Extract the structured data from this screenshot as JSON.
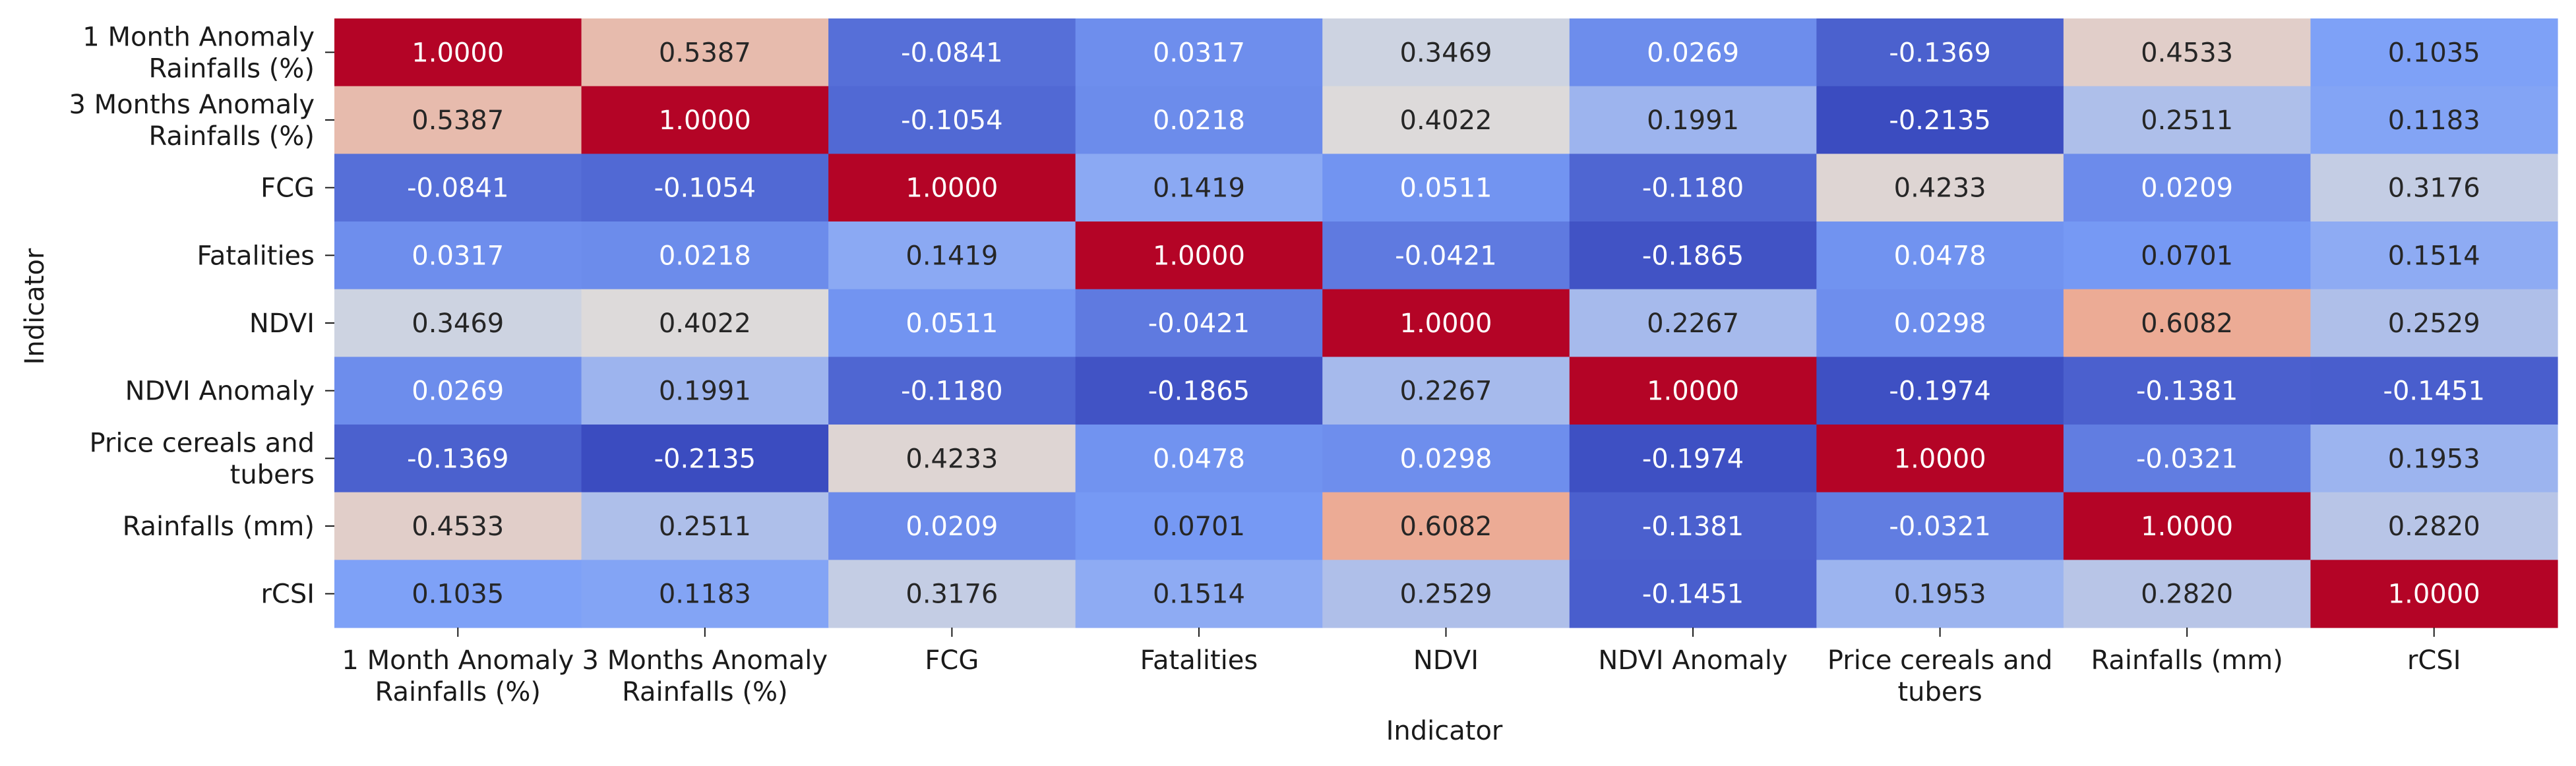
{
  "chart_data": {
    "type": "heatmap",
    "title": "",
    "xlabel": "Indicator",
    "ylabel": "Indicator",
    "colormap": "coolwarm",
    "value_range": [
      -0.2135,
      1.0
    ],
    "colorbar": false,
    "grid": false,
    "legend": "none",
    "categories": [
      [
        "1 Month Anomaly",
        "Rainfalls (%)"
      ],
      [
        "3 Months Anomaly",
        "Rainfalls (%)"
      ],
      [
        "FCG"
      ],
      [
        "Fatalities"
      ],
      [
        "NDVI"
      ],
      [
        "NDVI Anomaly"
      ],
      [
        "Price cereals and",
        "tubers"
      ],
      [
        "Rainfalls (mm)"
      ],
      [
        "rCSI"
      ]
    ],
    "matrix": [
      [
        "1.0000",
        "0.5387",
        "-0.0841",
        "0.0317",
        "0.3469",
        "0.0269",
        "-0.1369",
        "0.4533",
        "0.1035"
      ],
      [
        "0.5387",
        "1.0000",
        "-0.1054",
        "0.0218",
        "0.4022",
        "0.1991",
        "-0.2135",
        "0.2511",
        "0.1183"
      ],
      [
        "-0.0841",
        "-0.1054",
        "1.0000",
        "0.1419",
        "0.0511",
        "-0.1180",
        "0.4233",
        "0.0209",
        "0.3176"
      ],
      [
        "0.0317",
        "0.0218",
        "0.1419",
        "1.0000",
        "-0.0421",
        "-0.1865",
        "0.0478",
        "0.0701",
        "0.1514"
      ],
      [
        "0.3469",
        "0.4022",
        "0.0511",
        "-0.0421",
        "1.0000",
        "0.2267",
        "0.0298",
        "0.6082",
        "0.2529"
      ],
      [
        "0.0269",
        "0.1991",
        "-0.1180",
        "-0.1865",
        "0.2267",
        "1.0000",
        "-0.1974",
        "-0.1381",
        "-0.1451"
      ],
      [
        "-0.1369",
        "-0.2135",
        "0.4233",
        "0.0478",
        "0.0298",
        "-0.1974",
        "1.0000",
        "-0.0321",
        "0.1953"
      ],
      [
        "0.4533",
        "0.2511",
        "0.0209",
        "0.0701",
        "0.6082",
        "-0.1381",
        "-0.0321",
        "1.0000",
        "0.2820"
      ],
      [
        "0.1035",
        "0.1183",
        "0.3176",
        "0.1514",
        "0.2529",
        "-0.1451",
        "0.1953",
        "0.2820",
        "1.0000"
      ]
    ]
  }
}
